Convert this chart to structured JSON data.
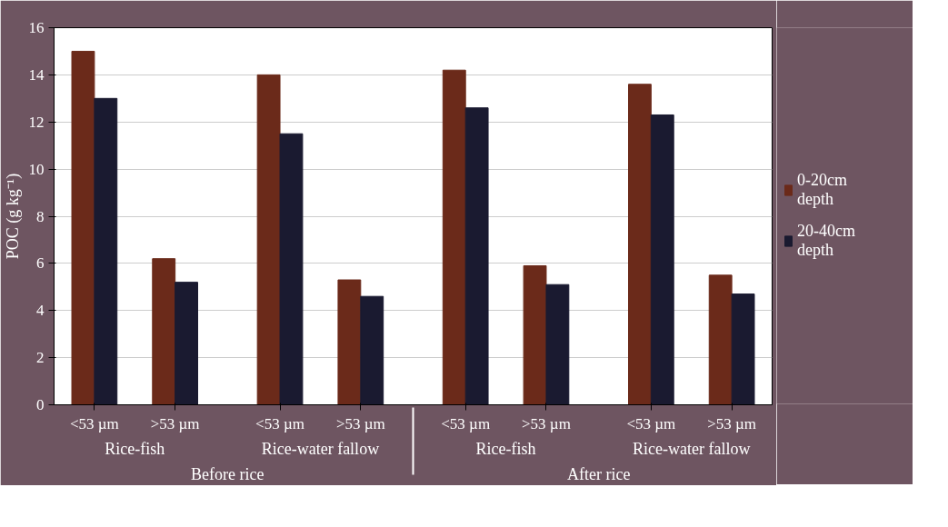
{
  "chart_data": {
    "type": "bar",
    "ylabel": "POC (g kg⁻¹)",
    "categories": [
      "<53 µm",
      ">53 µm",
      "<53 µm",
      ">53 µm",
      "<53 µm",
      ">53 µm",
      "<53 µm",
      ">53 µm"
    ],
    "annotations": [
      "Rice-fish",
      "Rice-water fallow",
      "Rice-fish",
      "Rice-water fallow",
      "Before rice",
      "After rice"
    ],
    "series": [
      {
        "name": "0-20cm depth",
        "color": "#6b2a1a",
        "values": [
          15.0,
          6.2,
          14.0,
          5.3,
          14.2,
          5.9,
          13.6,
          5.5
        ]
      },
      {
        "name": "20-40cm depth",
        "color": "#1a1a30",
        "values": [
          13.0,
          5.2,
          11.5,
          4.6,
          12.6,
          5.1,
          12.3,
          4.7
        ]
      }
    ],
    "ylim": [
      0,
      16
    ],
    "yticks": [
      0,
      2,
      4,
      6,
      8,
      10,
      12,
      14,
      16
    ],
    "grid": "y",
    "legend": "right"
  }
}
